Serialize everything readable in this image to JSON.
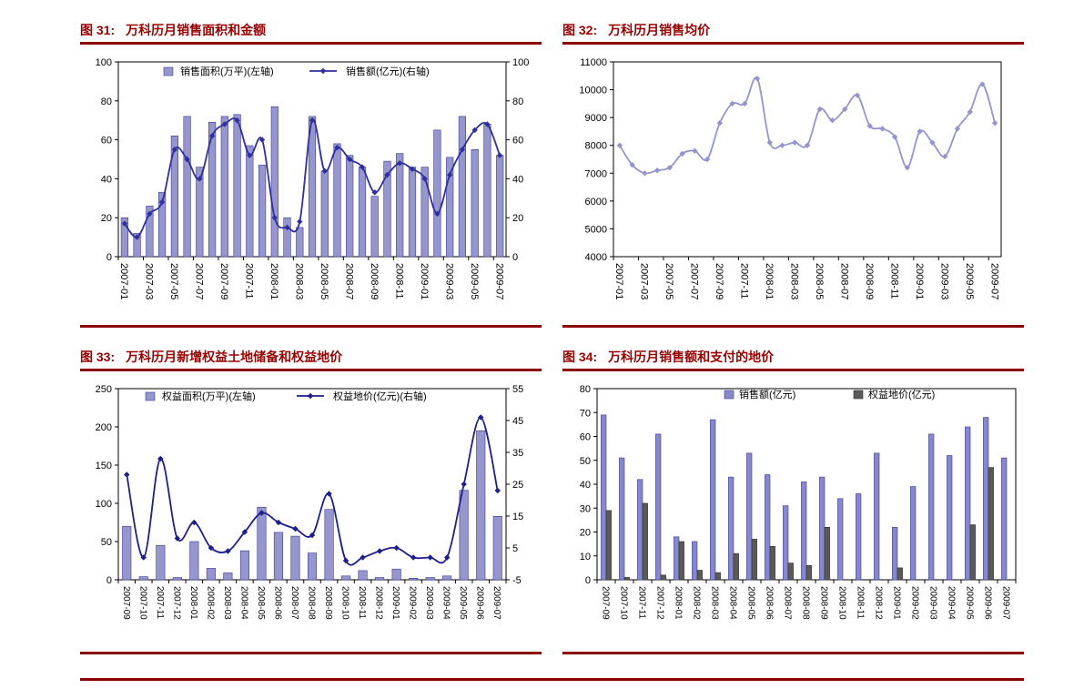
{
  "page": {
    "background": "#ffffff",
    "accent_rule_color": "#8B0000",
    "title_color": "#990000"
  },
  "chart_data": [
    {
      "id": "fig31",
      "type": "bar+line",
      "figure_label": "图 31:",
      "title": "万科历月销售面积和金额",
      "categories": [
        "2007-01",
        "2007-02",
        "2007-03",
        "2007-04",
        "2007-05",
        "2007-06",
        "2007-07",
        "2007-08",
        "2007-09",
        "2007-10",
        "2007-11",
        "2007-12",
        "2008-01",
        "2008-02",
        "2008-03",
        "2008-04",
        "2008-05",
        "2008-06",
        "2008-07",
        "2008-08",
        "2008-09",
        "2008-10",
        "2008-11",
        "2008-12",
        "2009-01",
        "2009-02",
        "2009-03",
        "2009-04",
        "2009-05",
        "2009-06",
        "2009-07"
      ],
      "x_label_interval": 2,
      "left_axis": {
        "min": 0,
        "max": 100,
        "step": 20
      },
      "right_axis": {
        "min": 0,
        "max": 100,
        "step": 20
      },
      "legend_position": "top",
      "series": [
        {
          "name": "销售面积(万平)(左轴)",
          "type": "bar",
          "axis": "left",
          "color": "#9696CD",
          "border": "#3A3A99",
          "values": [
            20,
            12,
            26,
            33,
            62,
            72,
            46,
            69,
            72,
            73,
            57,
            47,
            77,
            20,
            15,
            72,
            44,
            58,
            52,
            46,
            31,
            49,
            53,
            46,
            46,
            65,
            51,
            72,
            55,
            68,
            52
          ]
        },
        {
          "name": "销售额(亿元)(右轴)",
          "type": "line",
          "axis": "right",
          "color": "#2F2F9D",
          "values": [
            17,
            10,
            22,
            28,
            55,
            50,
            40,
            62,
            68,
            70,
            52,
            60,
            20,
            15,
            18,
            70,
            44,
            56,
            50,
            46,
            33,
            42,
            48,
            45,
            40,
            22,
            42,
            55,
            65,
            68,
            52
          ]
        }
      ]
    },
    {
      "id": "fig32",
      "type": "line",
      "figure_label": "图 32:",
      "title": "万科历月销售均价",
      "categories": [
        "2007-01",
        "2007-02",
        "2007-03",
        "2007-04",
        "2007-05",
        "2007-06",
        "2007-07",
        "2007-08",
        "2007-09",
        "2007-10",
        "2007-11",
        "2007-12",
        "2008-01",
        "2008-02",
        "2008-03",
        "2008-04",
        "2008-05",
        "2008-06",
        "2008-07",
        "2008-08",
        "2008-09",
        "2008-10",
        "2008-11",
        "2008-12",
        "2009-01",
        "2009-02",
        "2009-03",
        "2009-04",
        "2009-05",
        "2009-06",
        "2009-07"
      ],
      "x_label_interval": 2,
      "left_axis": {
        "min": 4000,
        "max": 11000,
        "step": 1000
      },
      "legend_position": "none",
      "series": [
        {
          "name": "销售均价",
          "type": "line",
          "axis": "left",
          "color": "#9595CE",
          "values": [
            8000,
            7300,
            7000,
            7100,
            7200,
            7700,
            7800,
            7500,
            8800,
            9500,
            9500,
            10400,
            8100,
            8000,
            8100,
            8000,
            9300,
            8900,
            9300,
            9800,
            8700,
            8600,
            8300,
            7200,
            8500,
            8100,
            7600,
            8600,
            9200,
            10200,
            8800
          ]
        }
      ]
    },
    {
      "id": "fig33",
      "type": "bar+line",
      "figure_label": "图 33:",
      "title": "万科历月新增权益土地储备和权益地价",
      "categories": [
        "2007-09",
        "2007-10",
        "2007-11",
        "2007-12",
        "2008-01",
        "2008-02",
        "2008-03",
        "2008-04",
        "2008-05",
        "2008-06",
        "2008-07",
        "2008-08",
        "2008-09",
        "2008-10",
        "2008-11",
        "2008-12",
        "2009-01",
        "2009-02",
        "2009-03",
        "2009-04",
        "2009-05",
        "2009-06",
        "2009-07"
      ],
      "x_label_interval": 1,
      "left_axis": {
        "min": 0,
        "max": 250,
        "step": 50
      },
      "right_axis": {
        "min": -5,
        "max": 55,
        "step": 10
      },
      "legend_position": "top",
      "series": [
        {
          "name": "权益面积(万平)(左轴)",
          "type": "bar",
          "axis": "left",
          "color": "#9696CD",
          "border": "#3A3A99",
          "values": [
            70,
            4,
            45,
            3,
            50,
            15,
            9,
            38,
            95,
            62,
            57,
            35,
            92,
            5,
            12,
            3,
            14,
            2,
            3,
            5,
            117,
            195,
            83
          ]
        },
        {
          "name": "权益地价(亿元)(右轴)",
          "type": "line",
          "axis": "right",
          "color": "#1E1E8C",
          "values": [
            28,
            2,
            33,
            8,
            13,
            5,
            4,
            10,
            16,
            13,
            11,
            9,
            22,
            1,
            2,
            4,
            5,
            2,
            2,
            2,
            25,
            46,
            23
          ]
        }
      ]
    },
    {
      "id": "fig34",
      "type": "bar",
      "figure_label": "图 34:",
      "title": "万科历月销售额和支付的地价",
      "categories": [
        "2007-09",
        "2007-10",
        "2007-11",
        "2007-12",
        "2008-01",
        "2008-02",
        "2008-03",
        "2008-04",
        "2008-05",
        "2008-06",
        "2008-07",
        "2008-08",
        "2008-09",
        "2008-10",
        "2008-11",
        "2008-12",
        "2009-01",
        "2009-02",
        "2009-03",
        "2009-04",
        "2009-05",
        "2009-06",
        "2009-07"
      ],
      "x_label_interval": 1,
      "left_axis": {
        "min": 0,
        "max": 80,
        "step": 10
      },
      "legend_position": "top",
      "series": [
        {
          "name": "销售额(亿元)",
          "type": "bar",
          "axis": "left",
          "color": "#8787C9",
          "border": "#3A3A99",
          "values": [
            69,
            51,
            42,
            61,
            18,
            16,
            67,
            43,
            53,
            44,
            31,
            41,
            43,
            34,
            36,
            53,
            22,
            39,
            61,
            52,
            64,
            68,
            51
          ]
        },
        {
          "name": "权益地价(亿元)",
          "type": "bar",
          "axis": "left",
          "color": "#5A5A5A",
          "border": "#2F2F2F",
          "values": [
            29,
            1,
            32,
            2,
            16,
            4,
            3,
            11,
            17,
            14,
            7,
            6,
            22,
            0,
            0,
            0,
            5,
            0,
            0,
            0,
            23,
            47,
            0
          ]
        }
      ]
    }
  ]
}
